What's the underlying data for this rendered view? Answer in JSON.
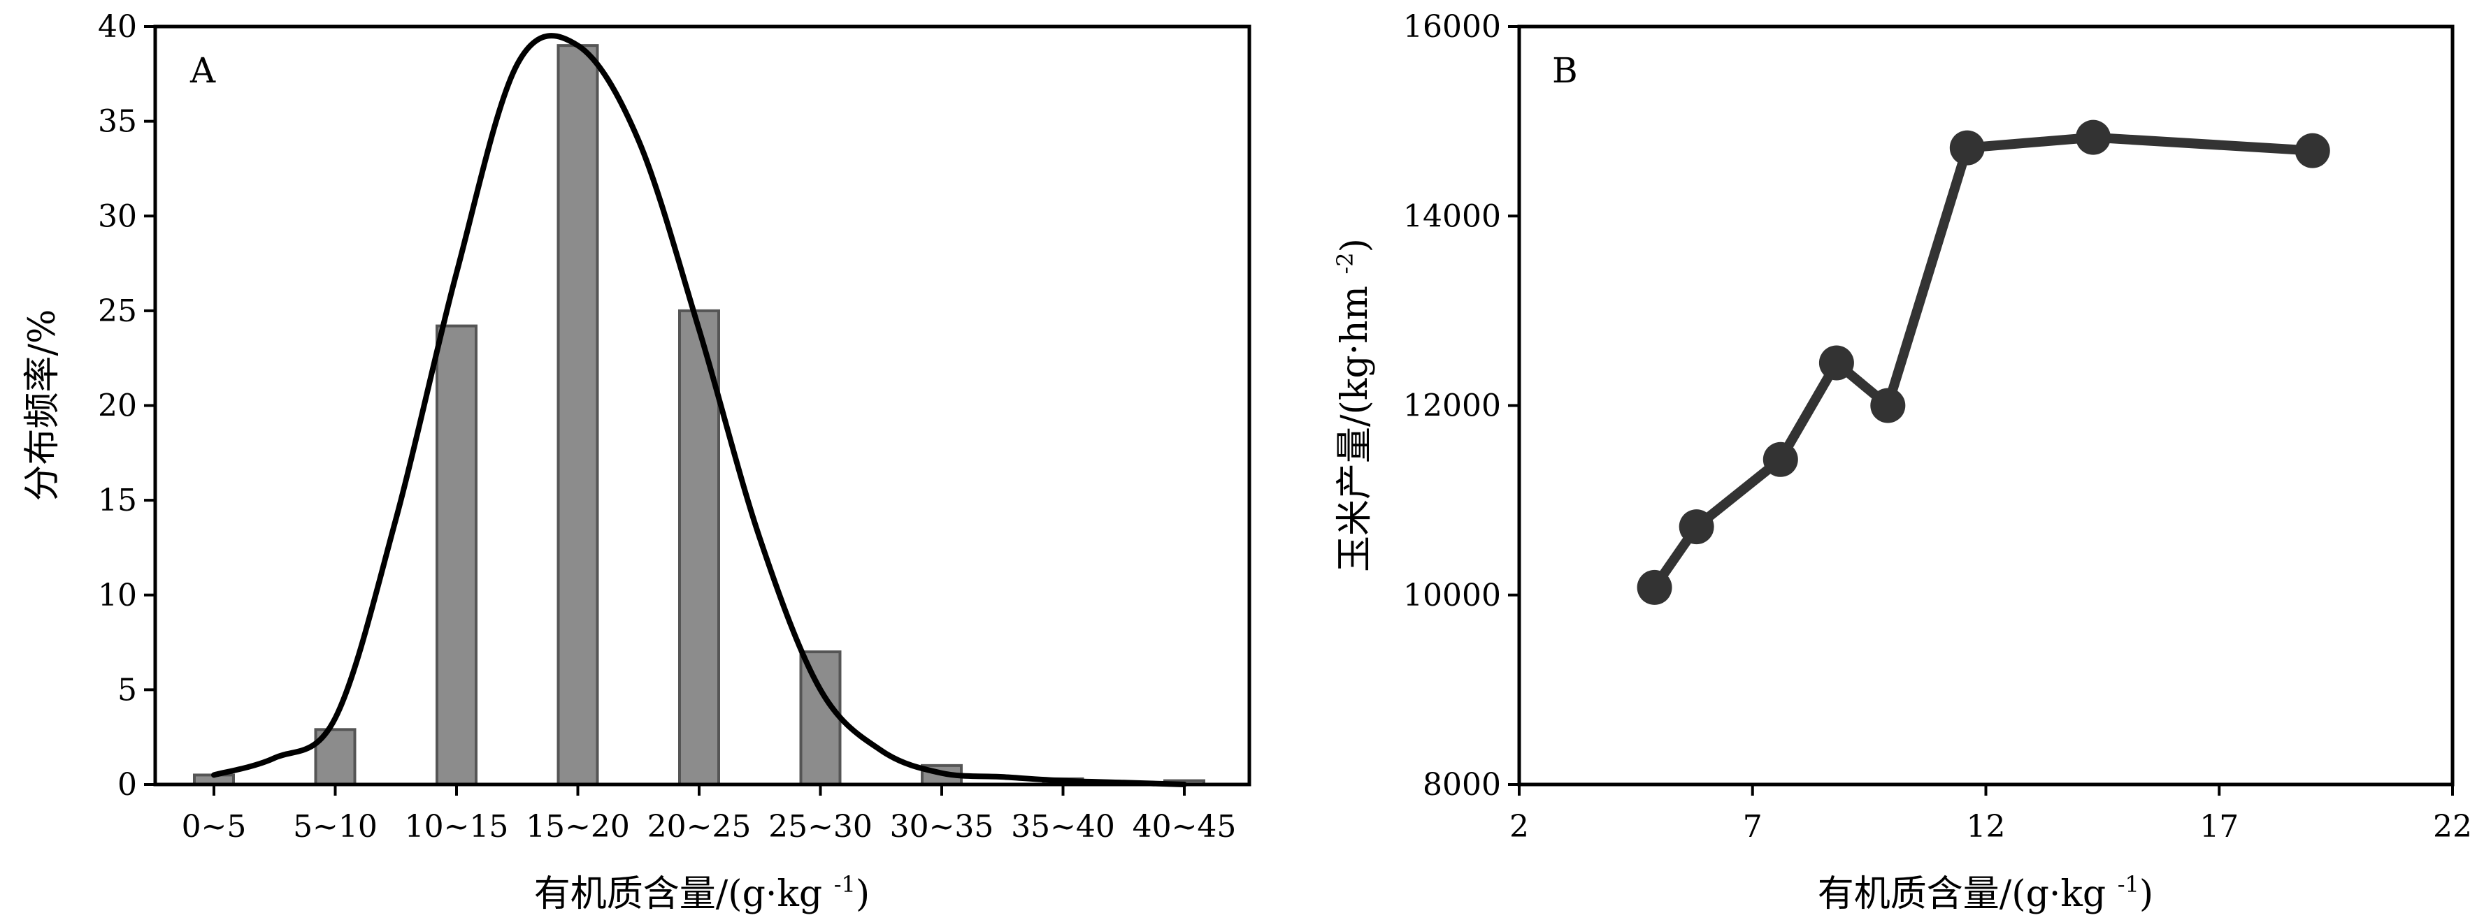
{
  "chart_data": [
    {
      "type": "bar",
      "panel_label": "A",
      "categories": [
        "0~5",
        "5~10",
        "10~15",
        "15~20",
        "20~25",
        "25~30",
        "30~35",
        "35~40",
        "40~45"
      ],
      "values": [
        0.5,
        2.9,
        24.2,
        39.0,
        25.0,
        7.0,
        1.0,
        0.3,
        0.2
      ],
      "curve": {
        "x": [
          0.0,
          0.5,
          1.0,
          1.5,
          2.0,
          2.5,
          3.0,
          3.5,
          4.0,
          4.5,
          5.0,
          5.5,
          6.0,
          6.5,
          7.0,
          7.5,
          8.0
        ],
        "y": [
          0.5,
          1.4,
          3.5,
          14.0,
          27.0,
          38.0,
          39.0,
          34.0,
          24.0,
          13.0,
          5.0,
          1.8,
          0.6,
          0.4,
          0.2,
          0.1,
          0.0
        ]
      },
      "xlabel": "有机质含量/(g·kg-1)",
      "ylabel": "分布频率/%",
      "ylim": [
        0,
        40
      ],
      "yticks": [
        "0",
        "5",
        "10",
        "15",
        "20",
        "25",
        "30",
        "35",
        "40"
      ],
      "bar_color": "#8c8c8c",
      "curve_color": "#000000"
    },
    {
      "type": "line",
      "panel_label": "B",
      "x": [
        4.9,
        5.8,
        7.6,
        8.8,
        9.9,
        11.6,
        14.3,
        19.0
      ],
      "y": [
        10080,
        10720,
        11430,
        12450,
        12000,
        14720,
        14830,
        14690
      ],
      "xlabel": "有机质含量/(g·kg-1)",
      "ylabel": "玉米产量/(kg·hm-2)",
      "xlim": [
        2,
        22
      ],
      "ylim": [
        8000,
        16000
      ],
      "xticks": [
        "2",
        "7",
        "12",
        "17",
        "22"
      ],
      "yticks": [
        "8000",
        "10000",
        "12000",
        "14000",
        "16000"
      ],
      "line_color": "#333333"
    }
  ]
}
